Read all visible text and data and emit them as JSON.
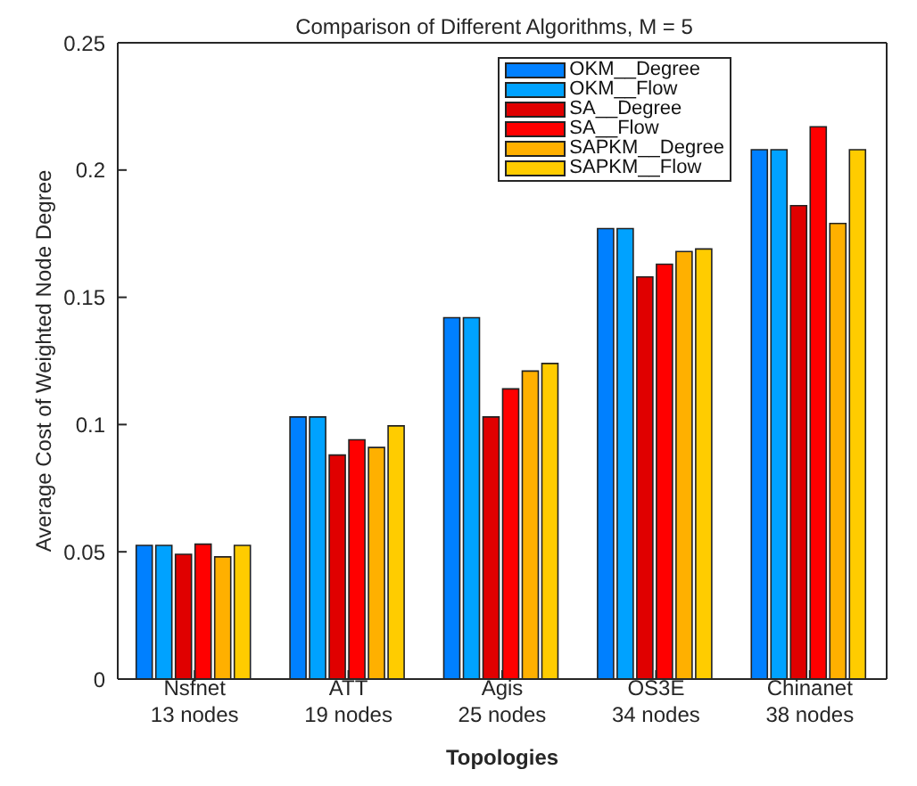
{
  "chart_data": {
    "type": "bar",
    "title": "Comparison of Different Algorithms, M = 5",
    "xlabel": "Topologies",
    "ylabel": "Average Cost of Weighted Node Degree",
    "categories": [
      "Nsfnet\n13 nodes",
      "ATT\n19 nodes",
      "Agis\n25 nodes",
      "OS3E\n34 nodes",
      "Chinanet\n38 nodes"
    ],
    "series": [
      {
        "name": "OKM__Degree",
        "color": "#0080ff",
        "values": [
          0.0525,
          0.103,
          0.142,
          0.177,
          0.208
        ]
      },
      {
        "name": "OKM__Flow",
        "color": "#00a2ff",
        "values": [
          0.0525,
          0.103,
          0.142,
          0.177,
          0.208
        ]
      },
      {
        "name": "SA__Degree",
        "color": "#e00000",
        "values": [
          0.049,
          0.088,
          0.103,
          0.158,
          0.186
        ]
      },
      {
        "name": "SA__Flow",
        "color": "#ff0000",
        "values": [
          0.053,
          0.094,
          0.114,
          0.163,
          0.217
        ]
      },
      {
        "name": "SAPKM__Degree",
        "color": "#ffb000",
        "values": [
          0.048,
          0.091,
          0.121,
          0.168,
          0.179
        ]
      },
      {
        "name": "SAPKM__Flow",
        "color": "#ffcc00",
        "values": [
          0.0525,
          0.0995,
          0.124,
          0.169,
          0.208
        ]
      }
    ],
    "ylim": [
      0,
      0.25
    ],
    "yticks": [
      0,
      0.05,
      0.1,
      0.15,
      0.2,
      0.25
    ],
    "grid": false,
    "legend": "top right"
  }
}
